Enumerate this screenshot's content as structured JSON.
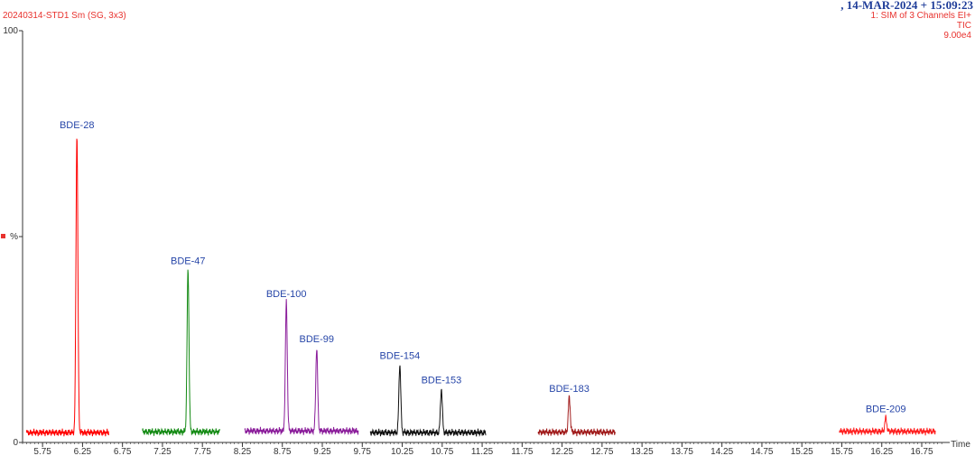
{
  "header": {
    "sample_id": "20240314-STD1 Sm (SG, 3x3)",
    "datetime": ", 14-MAR-2024 + 15:09:23",
    "channel": "1: SIM of 3 Channels EI+",
    "trace": "TIC",
    "intensity": "9.00e4"
  },
  "colors": {
    "header_red": "#e8322e",
    "header_blue": "#1f3d99",
    "label_blue": "#2746a8",
    "axis": "#333333"
  },
  "chart_data": {
    "type": "line",
    "title": "",
    "xlabel": "Time",
    "ylabel": "%",
    "xlim": [
      5.5,
      17.1
    ],
    "ylim": [
      0,
      100
    ],
    "y_ticks": [
      0,
      50,
      100
    ],
    "y_tick_labels": [
      "0",
      "%",
      "100"
    ],
    "x_ticks": [
      "5.75",
      "6.25",
      "6.75",
      "7.25",
      "7.75",
      "8.25",
      "8.75",
      "9.25",
      "9.75",
      "10.25",
      "10.75",
      "11.25",
      "11.75",
      "12.25",
      "12.75",
      "13.25",
      "13.75",
      "14.25",
      "14.75",
      "15.25",
      "15.75",
      "16.25",
      "16.75"
    ],
    "grid": false,
    "segments": [
      {
        "color": "#ff0000",
        "x_range": [
          5.55,
          6.58
        ],
        "baseline": 2.4
      },
      {
        "color": "#138a13",
        "x_range": [
          7.0,
          7.97
        ],
        "baseline": 2.6
      },
      {
        "color": "#8a1c9a",
        "x_range": [
          8.28,
          9.7
        ],
        "baseline": 2.8
      },
      {
        "color": "#111111",
        "x_range": [
          9.85,
          11.3
        ],
        "baseline": 2.4
      },
      {
        "color": "#a11c1c",
        "x_range": [
          11.95,
          12.92
        ],
        "baseline": 2.5
      },
      {
        "color": "#ff2020",
        "x_range": [
          15.72,
          16.92
        ],
        "baseline": 2.7
      }
    ],
    "peaks": [
      {
        "name": "BDE-28",
        "x": 6.18,
        "y": 75,
        "segment": 0
      },
      {
        "name": "BDE-47",
        "x": 7.57,
        "y": 42,
        "segment": 1
      },
      {
        "name": "BDE-100",
        "x": 8.8,
        "y": 34,
        "segment": 2
      },
      {
        "name": "BDE-99",
        "x": 9.18,
        "y": 23,
        "segment": 2
      },
      {
        "name": "BDE-154",
        "x": 10.22,
        "y": 19,
        "segment": 3
      },
      {
        "name": "BDE-153",
        "x": 10.74,
        "y": 13,
        "segment": 3
      },
      {
        "name": "BDE-183",
        "x": 12.34,
        "y": 11,
        "segment": 4
      },
      {
        "name": "BDE-209",
        "x": 16.3,
        "y": 6,
        "segment": 5
      }
    ]
  }
}
